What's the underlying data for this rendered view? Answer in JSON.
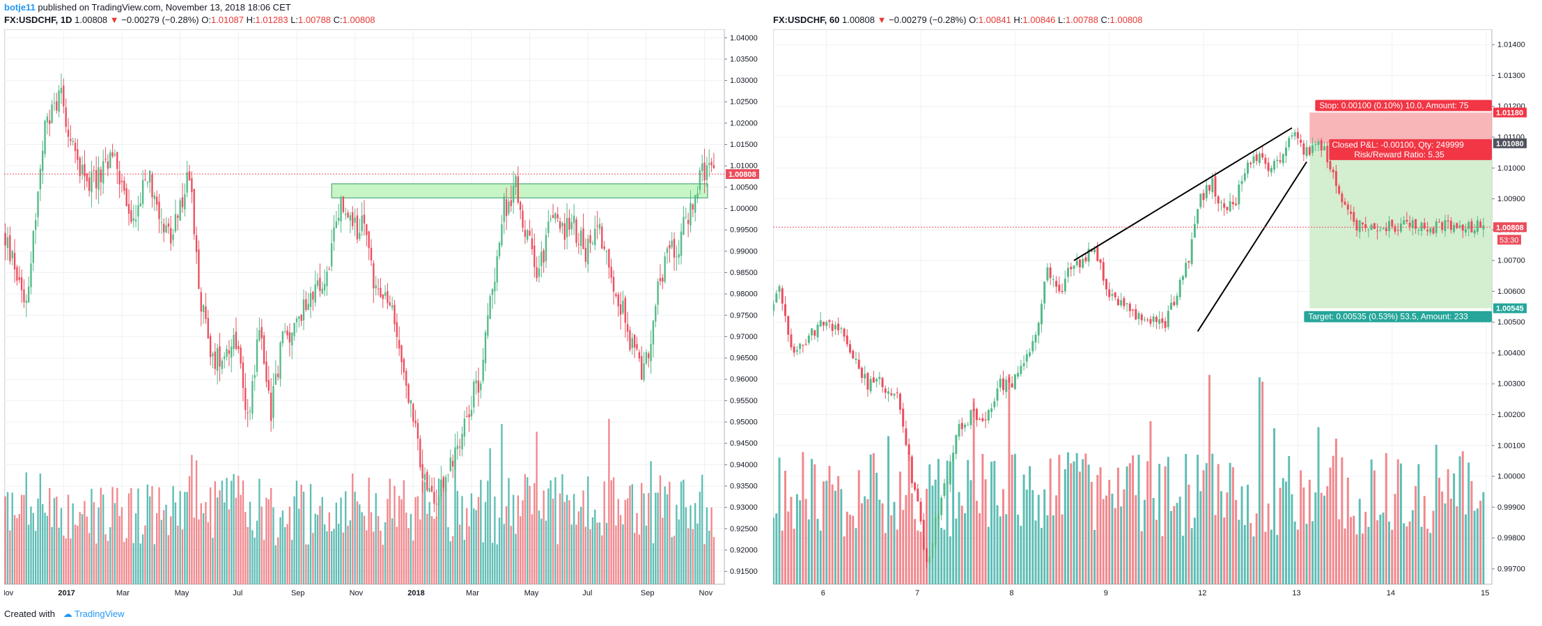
{
  "header": {
    "author": "botje11",
    "published": "published on TradingView.com, November 13, 2018 18:06 CET"
  },
  "footer": {
    "created_with": "Created with",
    "brand": "TradingView",
    "brand_icon": "tradingview-cloud-icon"
  },
  "colors": {
    "up": "#53b987",
    "down": "#eb4d5c",
    "vol_up": "#4db6ac",
    "vol_down": "#ef7a80",
    "accent": "#2196f3"
  },
  "chart_data": [
    {
      "type": "candlestick",
      "title": "FX:USDCHF, 1D",
      "symbol": "FX:USDCHF",
      "interval": "1D",
      "last": "1.00808",
      "change": "−0.00279 (−0.28%)",
      "open": "1.01087",
      "high": "1.01283",
      "low": "1.00788",
      "close": "1.00808",
      "ohlc_labels": {
        "o": "O:",
        "h": "H:",
        "l": "L:",
        "c": "C:"
      },
      "ylim": [
        0.912,
        1.042
      ],
      "y_ticks": [
        "1.04000",
        "1.03500",
        "1.03000",
        "1.02500",
        "1.02000",
        "1.01500",
        "1.01000",
        "1.00500",
        "1.00000",
        "0.99500",
        "0.99000",
        "0.98500",
        "0.98000",
        "0.97500",
        "0.97000",
        "0.96500",
        "0.96000",
        "0.95500",
        "0.95000",
        "0.94500",
        "0.94000",
        "0.93500",
        "0.93000",
        "0.92500",
        "0.92000",
        "0.91500"
      ],
      "x_ticks": [
        "Nov",
        "2017",
        "Mar",
        "May",
        "Jul",
        "Sep",
        "Nov",
        "2018",
        "Mar",
        "May",
        "Jul",
        "Sep",
        "Nov"
      ],
      "x_tick_index": [
        0,
        25,
        50,
        75,
        100,
        125,
        150,
        175,
        200,
        225,
        250,
        275,
        300
      ],
      "price_path_index": [
        0,
        10,
        18,
        25,
        30,
        38,
        48,
        55,
        62,
        72,
        80,
        85,
        90,
        100,
        105,
        110,
        115,
        120,
        125,
        130,
        138,
        145,
        150,
        155,
        160,
        166,
        170,
        175,
        180,
        185,
        190,
        195,
        200,
        205,
        210,
        215,
        220,
        225,
        230,
        235,
        240,
        245,
        250,
        255,
        260,
        265,
        270,
        275,
        280,
        285,
        290,
        295,
        300,
        305
      ],
      "price_path": [
        0.994,
        0.979,
        1.018,
        1.028,
        1.013,
        1.006,
        1.012,
        0.996,
        1.008,
        0.992,
        1.008,
        0.978,
        0.964,
        0.97,
        0.951,
        0.972,
        0.953,
        0.97,
        0.971,
        0.979,
        0.982,
        1.001,
        0.995,
        0.996,
        0.981,
        0.977,
        0.968,
        0.953,
        0.938,
        0.93,
        0.937,
        0.945,
        0.954,
        0.961,
        0.982,
        1.0,
        1.005,
        0.993,
        0.985,
        0.998,
        0.995,
        0.996,
        0.99,
        0.997,
        0.987,
        0.978,
        0.967,
        0.961,
        0.978,
        0.99,
        0.992,
        1.0,
        1.008,
        1.0081
      ],
      "bars": 305,
      "resistance_zone": [
        1.0025,
        1.0058
      ],
      "resistance_zone_start_index": 140,
      "last_price_label": "1.00808",
      "volume": "shown as histogram at bottom"
    },
    {
      "type": "candlestick",
      "title": "FX:USDCHF, 60",
      "symbol": "FX:USDCHF",
      "interval": "60",
      "last": "1.00808",
      "change": "−0.00279 (−0.28%)",
      "open": "1.00841",
      "high": "1.00846",
      "low": "1.00788",
      "close": "1.00808",
      "ohlc_labels": {
        "o": "O:",
        "h": "H:",
        "l": "L:",
        "c": "C:"
      },
      "ylim": [
        0.9965,
        1.0145
      ],
      "y_ticks": [
        "1.01400",
        "1.01300",
        "1.01200",
        "1.01100",
        "1.01000",
        "1.00900",
        "1.00800",
        "1.00700",
        "1.00600",
        "1.00500",
        "1.00400",
        "1.00300",
        "1.00200",
        "1.00100",
        "1.00000",
        "0.99900",
        "0.99800",
        "0.99700"
      ],
      "x_ticks": [
        "6",
        "7",
        "8",
        "9",
        "12",
        "13",
        "14",
        "15"
      ],
      "x_tick_index": [
        20,
        52,
        84,
        116,
        148,
        180,
        212,
        244
      ],
      "price_path_index": [
        0,
        5,
        10,
        15,
        20,
        25,
        30,
        35,
        40,
        45,
        48,
        52,
        55,
        58,
        62,
        66,
        70,
        75,
        80,
        84,
        88,
        92,
        96,
        100,
        104,
        108,
        112,
        116,
        120,
        124,
        128,
        132,
        136,
        140,
        144,
        148,
        152,
        156,
        160,
        164,
        168,
        172,
        176,
        180,
        184,
        188,
        190,
        192,
        196,
        200,
        204,
        205
      ],
      "price_path": [
        1.005,
        1.006,
        1.004,
        1.0045,
        1.005,
        1.0048,
        1.004,
        1.003,
        1.003,
        1.0025,
        1.001,
        0.999,
        0.997,
        0.9985,
        1.0,
        1.0015,
        1.002,
        1.002,
        1.003,
        1.003,
        1.0035,
        1.0045,
        1.0068,
        1.006,
        1.0068,
        1.007,
        1.0075,
        1.006,
        1.0055,
        1.0055,
        1.005,
        1.005,
        1.005,
        1.006,
        1.007,
        1.009,
        1.0095,
        1.0085,
        1.009,
        1.01,
        1.0105,
        1.01,
        1.0105,
        1.011,
        1.0105,
        1.011,
        1.0105,
        1.01,
        1.009,
        1.0081,
        1.0081,
        1.0081
      ],
      "bars": 244,
      "wedge_upper": [
        [
          104,
          1.007
        ],
        [
          178,
          1.0113
        ]
      ],
      "wedge_lower": [
        [
          146,
          1.0047
        ],
        [
          183,
          1.0102
        ]
      ],
      "position": {
        "entry": 1.0108,
        "stop": 1.0118,
        "target": 1.00545,
        "start_index": 184,
        "stop_label": "Stop: 0.00100 (0.10%) 10.0, Amount: 75",
        "closed_label": "Closed P&L: -0.00100, Qty: 249999",
        "rr_label": "Risk/Reward Ratio: 5.35",
        "target_label": "Target: 0.00535 (0.53%) 53.5, Amount: 233"
      },
      "price_labels": {
        "stop": "1.01180",
        "entry": "1.01080",
        "last": "1.00808",
        "countdown": "53:30",
        "target": "1.00545"
      }
    }
  ]
}
